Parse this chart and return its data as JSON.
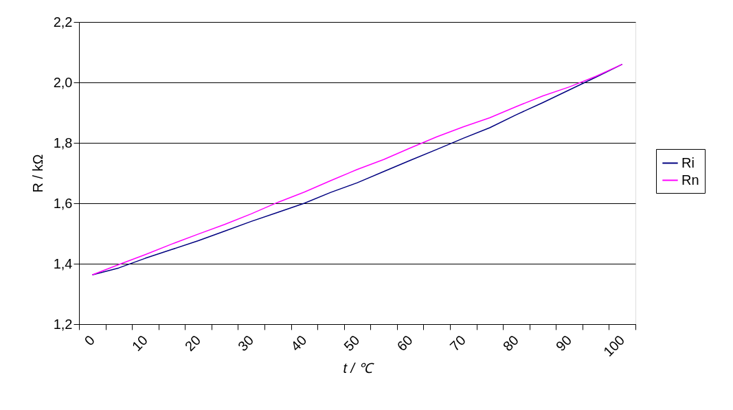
{
  "chart_data": {
    "type": "line",
    "xlabel": "t / ℃",
    "ylabel": "R / kΩ",
    "categories": [
      "0",
      null,
      "10",
      null,
      "20",
      null,
      "30",
      null,
      "40",
      null,
      "50",
      null,
      "60",
      null,
      "70",
      null,
      "80",
      null,
      "90",
      null,
      "100"
    ],
    "series": [
      {
        "name": "Ri",
        "color": "#000080",
        "values": [
          1.363,
          1.386,
          1.418,
          1.447,
          1.476,
          1.508,
          1.54,
          1.57,
          1.6,
          1.636,
          1.668,
          1.705,
          1.742,
          1.778,
          1.815,
          1.85,
          1.893,
          1.933,
          1.975,
          2.017,
          2.06
        ]
      },
      {
        "name": "Rn",
        "color": "#ff00ff",
        "values": [
          1.363,
          1.397,
          1.43,
          1.465,
          1.498,
          1.53,
          1.565,
          1.603,
          1.637,
          1.675,
          1.712,
          1.745,
          1.783,
          1.82,
          1.853,
          1.883,
          1.92,
          1.955,
          1.985,
          2.02,
          2.06
        ]
      }
    ],
    "ylim": [
      1.2,
      2.2
    ],
    "yticks": [
      {
        "value": 1.2,
        "label": "1,2"
      },
      {
        "value": 1.4,
        "label": "1,4"
      },
      {
        "value": 1.6,
        "label": "1,6"
      },
      {
        "value": 1.8,
        "label": "1,8"
      },
      {
        "value": 2.0,
        "label": "2,0"
      },
      {
        "value": 2.2,
        "label": "2,2"
      }
    ],
    "grid": "y",
    "legend": "right",
    "marker": "none",
    "line_style": "solid"
  }
}
